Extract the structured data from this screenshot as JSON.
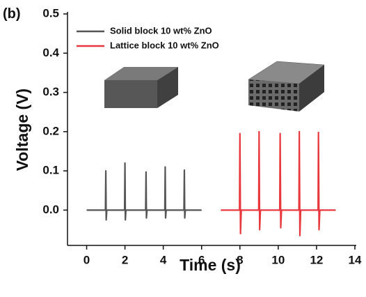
{
  "chart_data": {
    "type": "line",
    "panel_label": "(b)",
    "x_label": "Time (s)",
    "y_label": "Voltage (V)",
    "xlim": [
      -1,
      14
    ],
    "xticks": [
      0,
      2,
      4,
      6,
      8,
      10,
      12,
      14
    ],
    "ylim": [
      -0.09,
      0.5
    ],
    "yticks": [
      {
        "value": 0,
        "label": "0.0"
      },
      0.1,
      0.2,
      0.3,
      0.4,
      0.5
    ],
    "legend": "upper left",
    "series": [
      {
        "name": "Solid block 10 wt% ZnO",
        "color": "#555555",
        "x": [
          0,
          0.98,
          1.0,
          1.02,
          1.05,
          1.98,
          2.0,
          2.02,
          2.05,
          3.08,
          3.1,
          3.12,
          3.15,
          4.08,
          4.1,
          4.12,
          4.15,
          5.08,
          5.1,
          5.12,
          5.15,
          6
        ],
        "values": [
          0,
          0,
          0.1,
          -0.025,
          0,
          0,
          0.12,
          -0.025,
          0,
          0,
          0.097,
          -0.02,
          0,
          0,
          0.11,
          -0.02,
          0,
          0,
          0.102,
          -0.02,
          0,
          0
        ]
      },
      {
        "name": "Lattice block 10 wt% ZnO",
        "color": "#e8383d",
        "x": [
          7,
          7.98,
          8.0,
          8.03,
          8.07,
          8.98,
          9.0,
          9.03,
          9.07,
          10.08,
          10.1,
          10.13,
          10.17,
          11.08,
          11.1,
          11.13,
          11.17,
          12.08,
          12.1,
          12.13,
          12.17,
          13
        ],
        "values": [
          0,
          0,
          0.195,
          -0.06,
          0,
          0,
          0.2,
          -0.05,
          0,
          0,
          0.195,
          -0.045,
          0,
          0,
          0.2,
          -0.065,
          0,
          0,
          0.198,
          -0.05,
          0,
          0
        ]
      }
    ]
  }
}
